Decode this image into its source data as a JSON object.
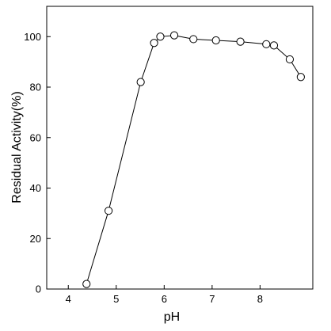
{
  "chart_data": {
    "type": "line",
    "title": "",
    "xlabel": "pH",
    "ylabel": "Residual Activity(%)",
    "xlim": [
      3.55,
      9.1
    ],
    "ylim": [
      0,
      112
    ],
    "xticks": [
      4,
      5,
      6,
      7,
      8
    ],
    "yticks": [
      0,
      20,
      40,
      60,
      80,
      100
    ],
    "grid": false,
    "legend": "none",
    "marker": "open-circle",
    "series": [
      {
        "x": [
          4.38,
          4.84,
          5.51,
          5.79,
          5.92,
          6.21,
          6.61,
          7.08,
          7.59,
          8.13,
          8.29,
          8.62,
          8.85
        ],
        "y": [
          2,
          31,
          82,
          97.5,
          100,
          100.5,
          99,
          98.5,
          98,
          97,
          96.5,
          91,
          84
        ]
      }
    ]
  }
}
